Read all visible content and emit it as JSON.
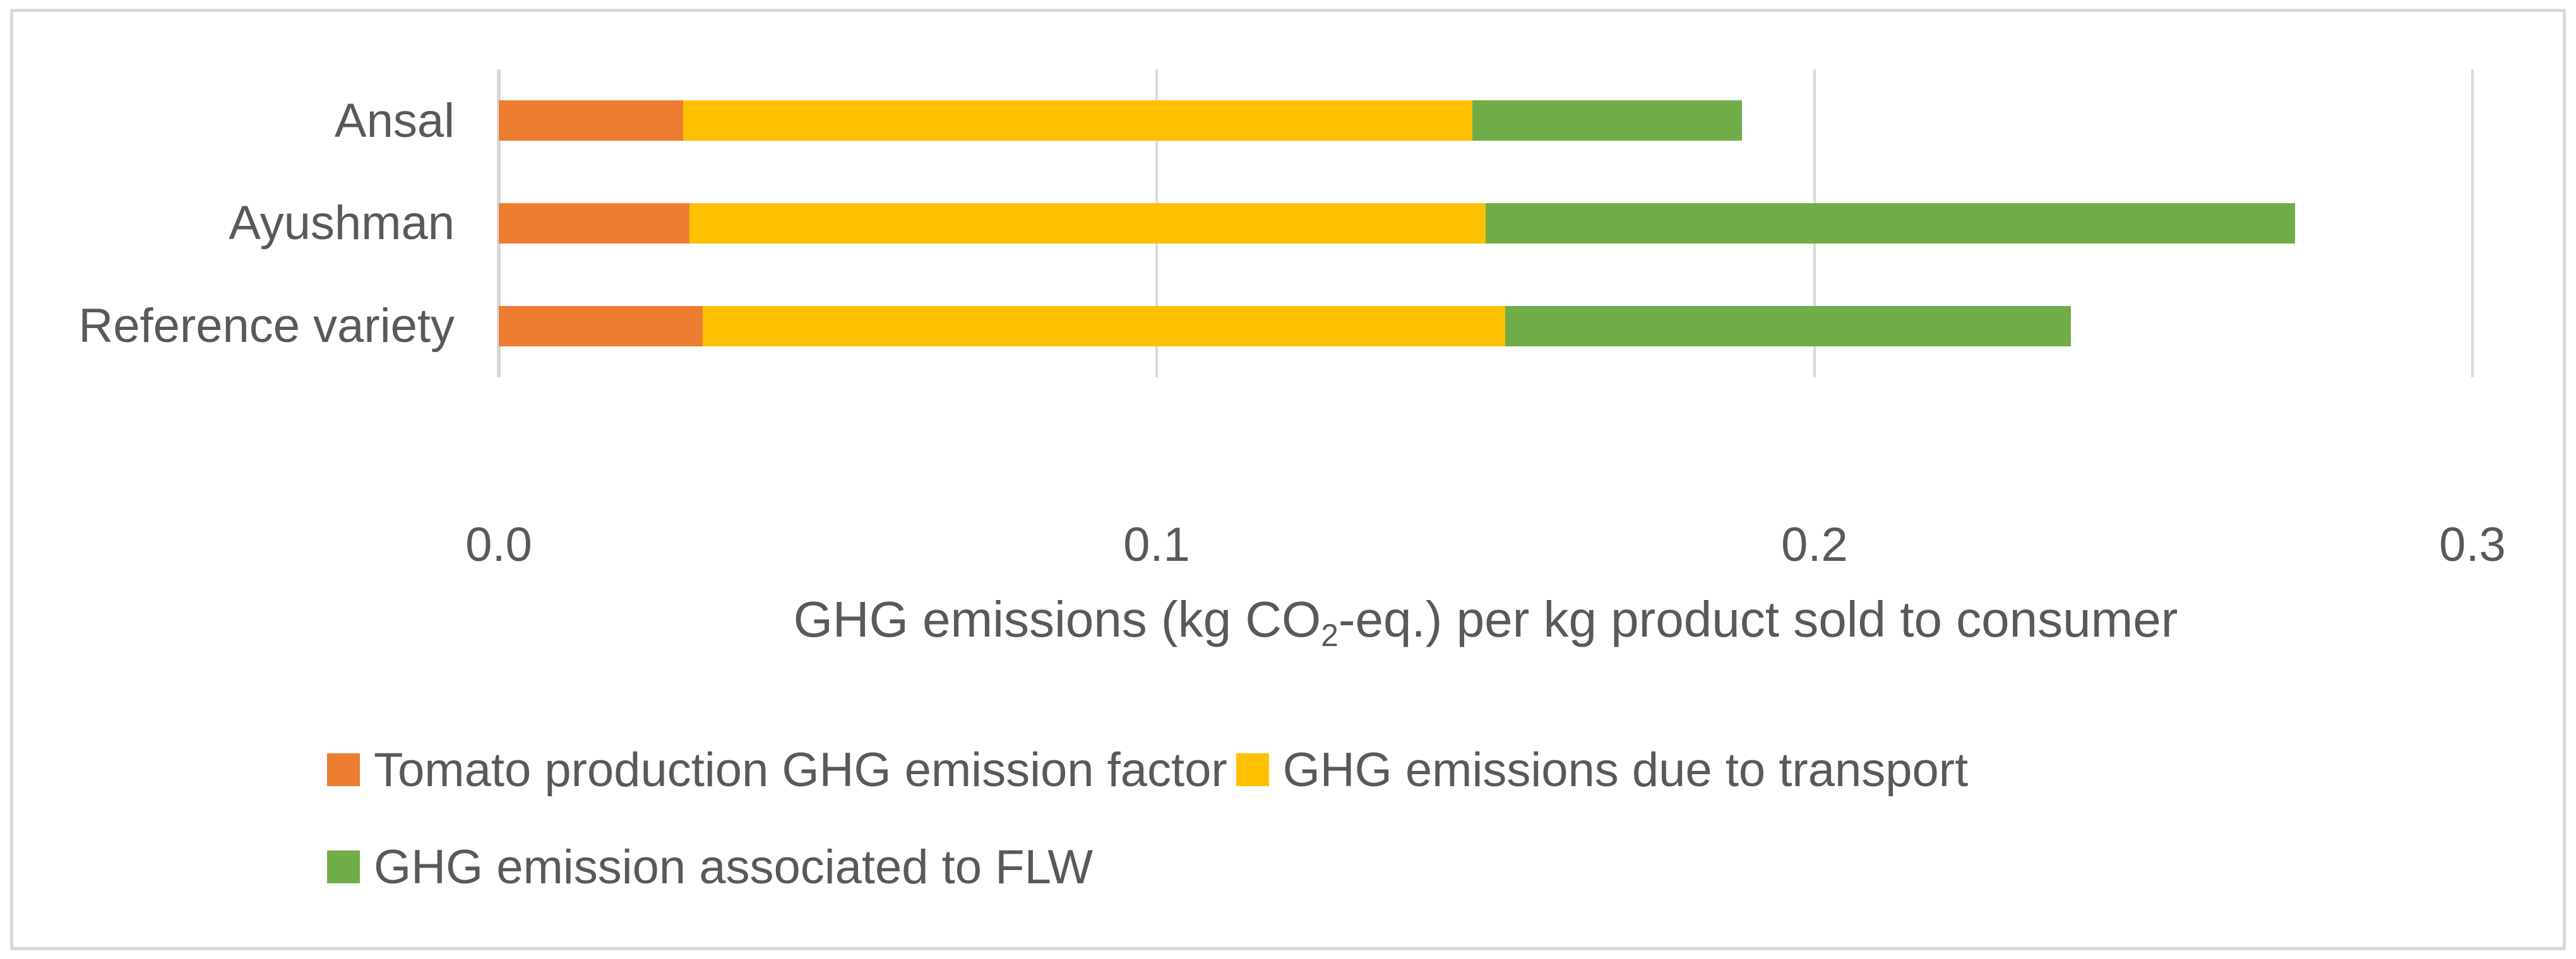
{
  "chart_data": {
    "type": "bar",
    "orientation": "horizontal",
    "stacked": true,
    "title": "",
    "categories": [
      "Ansal",
      "Ayushman",
      "Reference variety"
    ],
    "series": [
      {
        "name": "Tomato production GHG emission factor",
        "color": "#ED7D31",
        "values": [
          0.028,
          0.029,
          0.031
        ]
      },
      {
        "name": "GHG emissions due to transport",
        "color": "#FFC000",
        "values": [
          0.12,
          0.121,
          0.122
        ]
      },
      {
        "name": "GHG emission associated to FLW",
        "color": "#70AD47",
        "values": [
          0.041,
          0.123,
          0.086
        ]
      }
    ],
    "stack_totals": [
      0.189,
      0.273,
      0.239
    ],
    "xlim": [
      0,
      0.3
    ],
    "xticks": [
      0.0,
      0.1,
      0.2,
      0.3
    ],
    "xtick_labels": [
      "0.0",
      "0.1",
      "0.2",
      "0.3"
    ],
    "xlabel": {
      "prefix": "GHG emissions (kg CO",
      "sub": "2",
      "suffix": "-eq.) per kg product sold to consumer"
    },
    "ylabel": "",
    "grid": "vertical-only",
    "legend_position": "bottom-left",
    "legend_rows": [
      [
        0,
        1
      ],
      [
        2
      ]
    ]
  },
  "styles": {
    "text_color": "#595959",
    "grid_color": "#D9D9D9",
    "frame_border_color": "#D9D9D9",
    "background_color": "#FFFFFF"
  }
}
